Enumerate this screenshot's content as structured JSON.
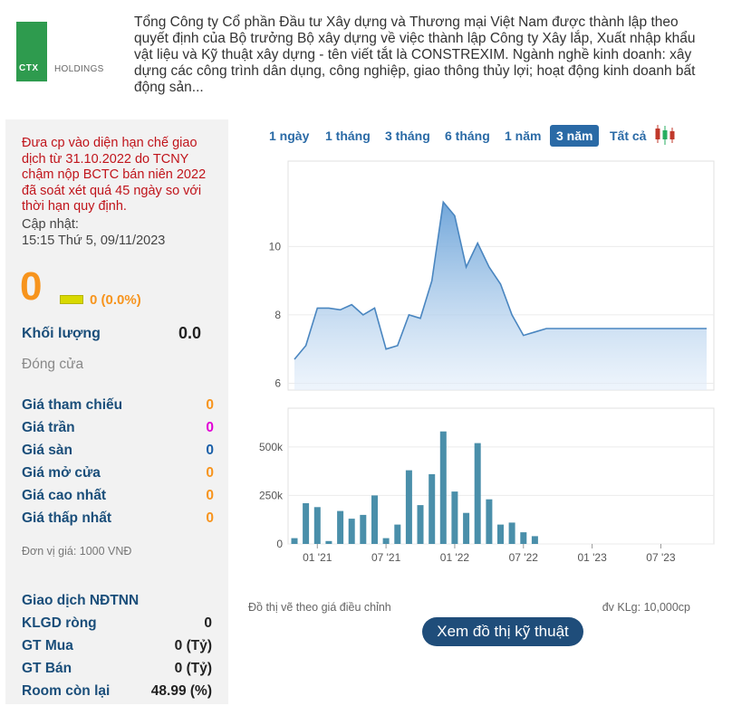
{
  "header": {
    "logo_text": "CTX",
    "logo_holdings": "HOLDINGS",
    "description": "Tổng Công ty Cổ phần Đầu tư Xây dựng và Thương mại Việt Nam được thành lập theo quyết định của Bộ trưởng Bộ xây dựng về việc thành lập Công ty Xây lắp, Xuất nhập khẩu vật liệu và Kỹ thuật xây dựng - tên viết tắt là CONSTREXIM. Ngành nghề kinh doanh: xây dựng các công trình dân dụng, công nghiệp, giao thông thủy lợi; hoạt động kinh doanh bất động sản..."
  },
  "left_panel": {
    "notice": "Đưa cp vào diện hạn chế giao dịch từ 31.10.2022 do TCNY chậm nộp BCTC bán niên 2022 đã soát xét quá 45 ngày so với thời hạn quy định.",
    "update_label": "Cập nhật:",
    "update_time": "15:15 Thứ 5, 09/11/2023",
    "price": "0",
    "change": "0 (0.0%)",
    "volume_label": "Khối lượng",
    "volume_value": "0.0",
    "close_label": "Đóng cửa",
    "prices": [
      {
        "label": "Giá tham chiếu",
        "value": "0",
        "color": "#f7941d"
      },
      {
        "label": "Giá trần",
        "value": "0",
        "color": "#e100d6"
      },
      {
        "label": "Giá sàn",
        "value": "0",
        "color": "#1a5fa8"
      },
      {
        "label": "Giá mở cửa",
        "value": "0",
        "color": "#f7941d"
      },
      {
        "label": "Giá cao nhất",
        "value": "0",
        "color": "#f7941d"
      },
      {
        "label": "Giá thấp nhất",
        "value": "0",
        "color": "#f7941d"
      }
    ],
    "unit_note": "Đơn vị giá: 1000 VNĐ",
    "foreign": {
      "title": "Giao dịch NĐTNN",
      "rows": [
        {
          "label": "KLGD ròng",
          "value": "0"
        },
        {
          "label": "GT Mua",
          "value": "0 (Tỷ)"
        },
        {
          "label": "GT Bán",
          "value": "0 (Tỷ)"
        },
        {
          "label": "Room còn lại",
          "value": "48.99 (%)"
        }
      ]
    }
  },
  "chart_controls": {
    "ranges": [
      "1 ngày",
      "1 tháng",
      "3 tháng",
      "6 tháng",
      "1 năm",
      "3 năm",
      "Tất cả"
    ],
    "active_range": "3 năm",
    "candle_icon": "candlestick-icon"
  },
  "chart_data": [
    {
      "type": "area",
      "x": [
        "2020-11",
        "2020-12",
        "2021-01",
        "2021-02",
        "2021-03",
        "2021-04",
        "2021-05",
        "2021-06",
        "2021-07",
        "2021-08",
        "2021-09",
        "2021-10",
        "2021-11",
        "2021-12",
        "2022-01",
        "2022-02",
        "2022-03",
        "2022-04",
        "2022-05",
        "2022-06",
        "2022-07",
        "2022-08",
        "2022-09",
        "2022-10",
        "2022-11",
        "2022-12",
        "2023-01",
        "2023-02",
        "2023-03",
        "2023-04",
        "2023-05",
        "2023-06",
        "2023-07",
        "2023-08",
        "2023-09",
        "2023-10",
        "2023-11"
      ],
      "values": [
        6.7,
        7.1,
        8.2,
        8.2,
        8.15,
        8.3,
        8.0,
        8.2,
        7.0,
        7.1,
        8.0,
        7.9,
        9.0,
        11.3,
        10.9,
        9.4,
        10.1,
        9.4,
        8.9,
        8.0,
        7.4,
        7.5,
        7.6,
        7.6,
        7.6,
        7.6,
        7.6,
        7.6,
        7.6,
        7.6,
        7.6,
        7.6,
        7.6,
        7.6,
        7.6,
        7.6,
        7.6
      ],
      "yticks": [
        "6",
        "8",
        "10"
      ],
      "ylim": [
        5.8,
        12.5
      ],
      "grid": true
    },
    {
      "type": "bar",
      "x": [
        "2020-11",
        "2020-12",
        "2021-01",
        "2021-02",
        "2021-03",
        "2021-04",
        "2021-05",
        "2021-06",
        "2021-07",
        "2021-08",
        "2021-09",
        "2021-10",
        "2021-11",
        "2021-12",
        "2022-01",
        "2022-02",
        "2022-03",
        "2022-04",
        "2022-05",
        "2022-06",
        "2022-07",
        "2022-08",
        "2022-09",
        "2022-10",
        "2022-11",
        "2022-12",
        "2023-01",
        "2023-02",
        "2023-03",
        "2023-04",
        "2023-05",
        "2023-06",
        "2023-07",
        "2023-08",
        "2023-09",
        "2023-10",
        "2023-11"
      ],
      "values": [
        30000,
        210000,
        190000,
        15000,
        170000,
        130000,
        150000,
        250000,
        30000,
        100000,
        380000,
        200000,
        360000,
        580000,
        270000,
        160000,
        520000,
        230000,
        100000,
        110000,
        60000,
        40000,
        0,
        0,
        0,
        0,
        0,
        0,
        0,
        0,
        0,
        0,
        0,
        0,
        0,
        0,
        0
      ],
      "yticks": [
        "0",
        "250k",
        "500k"
      ],
      "ylim": [
        0,
        700000
      ],
      "xtick_labels": [
        "01 '21",
        "07 '21",
        "01 '22",
        "07 '22",
        "01 '23",
        "07 '23"
      ],
      "grid": true
    }
  ],
  "footer": {
    "adjust_note": "Đồ thị vẽ theo giá điều chỉnh",
    "volume_unit": "đv KLg: 10,000cp",
    "tech_button": "Xem đồ thị kỹ thuật"
  }
}
